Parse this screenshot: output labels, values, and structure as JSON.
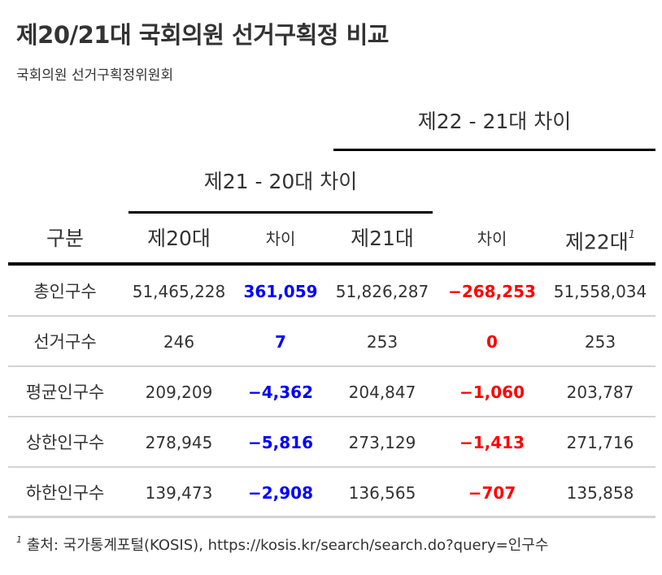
{
  "header": {
    "title": "제20/21대 국회의원 선거구획정 비교",
    "subtitle": "국회의원 선거구획정위원회"
  },
  "spanners": {
    "diff_22_21": "제22 - 21대 차이",
    "diff_21_20": "제21 - 20대 차이"
  },
  "columns": {
    "category": "구분",
    "gen20": "제20대",
    "diff1": "차이",
    "gen21": "제21대",
    "diff2": "차이",
    "gen22": "제22대",
    "gen22_footnote_mark": "1"
  },
  "rows": [
    {
      "label": "총인구수",
      "gen20": "51,465,228",
      "diff1": "361,059",
      "gen21": "51,826,287",
      "diff2": "−268,253",
      "gen22": "51,558,034"
    },
    {
      "label": "선거구수",
      "gen20": "246",
      "diff1": "7",
      "gen21": "253",
      "diff2": "0",
      "gen22": "253"
    },
    {
      "label": "평균인구수",
      "gen20": "209,209",
      "diff1": "−4,362",
      "gen21": "204,847",
      "diff2": "−1,060",
      "gen22": "203,787"
    },
    {
      "label": "상한인구수",
      "gen20": "278,945",
      "diff1": "−5,816",
      "gen21": "273,129",
      "diff2": "−1,413",
      "gen22": "271,716"
    },
    {
      "label": "하한인구수",
      "gen20": "139,473",
      "diff1": "−2,908",
      "gen21": "136,565",
      "diff2": "−707",
      "gen22": "135,858"
    }
  ],
  "footnote": {
    "mark": "1",
    "text": "출처: 국가통계포털(KOSIS), https://kosis.kr/search/search.do?query=인구수"
  },
  "colors": {
    "diff_21_20": "#0000ff",
    "diff_22_21": "#ff0000",
    "text": "#333333",
    "rule_heavy": "#000000",
    "rule_light": "#d3d3d3"
  }
}
